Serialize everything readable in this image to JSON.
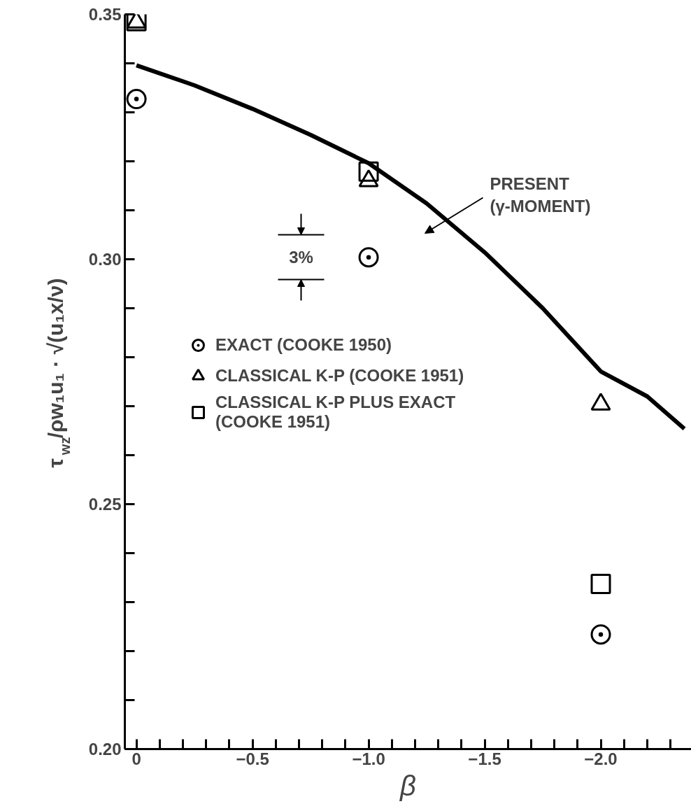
{
  "chart_data": {
    "type": "scatter",
    "xlabel": "β",
    "ylabel": "τ$_{wz}$/ρw₁u₁ · √(u₁x/ν)",
    "xlim": [
      0.05,
      -2.39
    ],
    "ylim": [
      0.2,
      0.35
    ],
    "xticks": [
      0,
      {
        "value": -0.5,
        "label": "−0.5"
      },
      {
        "value": -1.0,
        "label": "−1.0"
      },
      {
        "value": -1.5,
        "label": "−1.5"
      },
      {
        "value": -2.0,
        "label": "−2.0"
      },
      {
        "value": -0.1,
        "label": null
      },
      {
        "value": -0.2,
        "label": null
      },
      {
        "value": -0.3,
        "label": null
      },
      {
        "value": -0.4,
        "label": null
      },
      {
        "value": -0.6,
        "label": null
      },
      {
        "value": -0.7,
        "label": null
      },
      {
        "value": -0.8,
        "label": null
      },
      {
        "value": -0.9,
        "label": null
      },
      {
        "value": -1.1,
        "label": null
      },
      {
        "value": -1.2,
        "label": null
      },
      {
        "value": -1.3,
        "label": null
      },
      {
        "value": -1.4,
        "label": null
      },
      {
        "value": -1.6,
        "label": null
      },
      {
        "value": -1.7,
        "label": null
      },
      {
        "value": -1.8,
        "label": null
      },
      {
        "value": -1.9,
        "label": null
      },
      {
        "value": -2.1,
        "label": null
      },
      {
        "value": -2.2,
        "label": null
      },
      {
        "value": -2.3,
        "label": null
      }
    ],
    "yticks": [
      {
        "value": 0.2,
        "label": "0.20"
      },
      {
        "value": 0.25,
        "label": "0.25"
      },
      {
        "value": 0.3,
        "label": "0.30"
      },
      {
        "value": 0.35,
        "label": "0.35"
      },
      {
        "value": 0.21,
        "label": null
      },
      {
        "value": 0.22,
        "label": null
      },
      {
        "value": 0.23,
        "label": null
      },
      {
        "value": 0.24,
        "label": null
      },
      {
        "value": 0.26,
        "label": null
      },
      {
        "value": 0.27,
        "label": null
      },
      {
        "value": 0.28,
        "label": null
      },
      {
        "value": 0.29,
        "label": null
      },
      {
        "value": 0.31,
        "label": null
      },
      {
        "value": 0.32,
        "label": null
      },
      {
        "value": 0.33,
        "label": null
      },
      {
        "value": 0.34,
        "label": null
      }
    ],
    "grid": false,
    "legend": "left",
    "series": [
      {
        "type": "line",
        "color": "#000000",
        "x": [
          0,
          -0.25,
          -0.5,
          -0.75,
          -1.0,
          -1.25,
          -1.5,
          -1.75,
          -2.0,
          -2.2,
          -2.36
        ],
        "values": [
          0.3396,
          0.3355,
          0.3307,
          0.3254,
          0.3196,
          0.3114,
          0.3014,
          0.29,
          0.2771,
          0.272,
          0.2654
        ]
      },
      {
        "name": "EXACT (COOKE 1950)",
        "marker": "circle",
        "color": "#000000",
        "x": [
          0,
          -1.0,
          -2.0
        ],
        "values": [
          0.3327,
          0.3004,
          0.2234
        ]
      },
      {
        "name": "CLASSICAL K-P (COOKE 1951)",
        "marker": "triangle",
        "color": "#000000",
        "x": [
          0,
          -1.0,
          -2.0
        ],
        "values": [
          0.3484,
          0.316,
          0.2704
        ]
      },
      {
        "name": "CLASSICAL K-P PLUS EXACT\n(COOKE 1951)",
        "marker": "square",
        "color": "#000000",
        "x": [
          0,
          -1.0,
          -2.0
        ],
        "values": [
          0.3486,
          0.3179,
          0.2337
        ]
      }
    ],
    "annotations": [
      "PRESENT\n(γ-MOMENT)",
      "3%"
    ]
  }
}
